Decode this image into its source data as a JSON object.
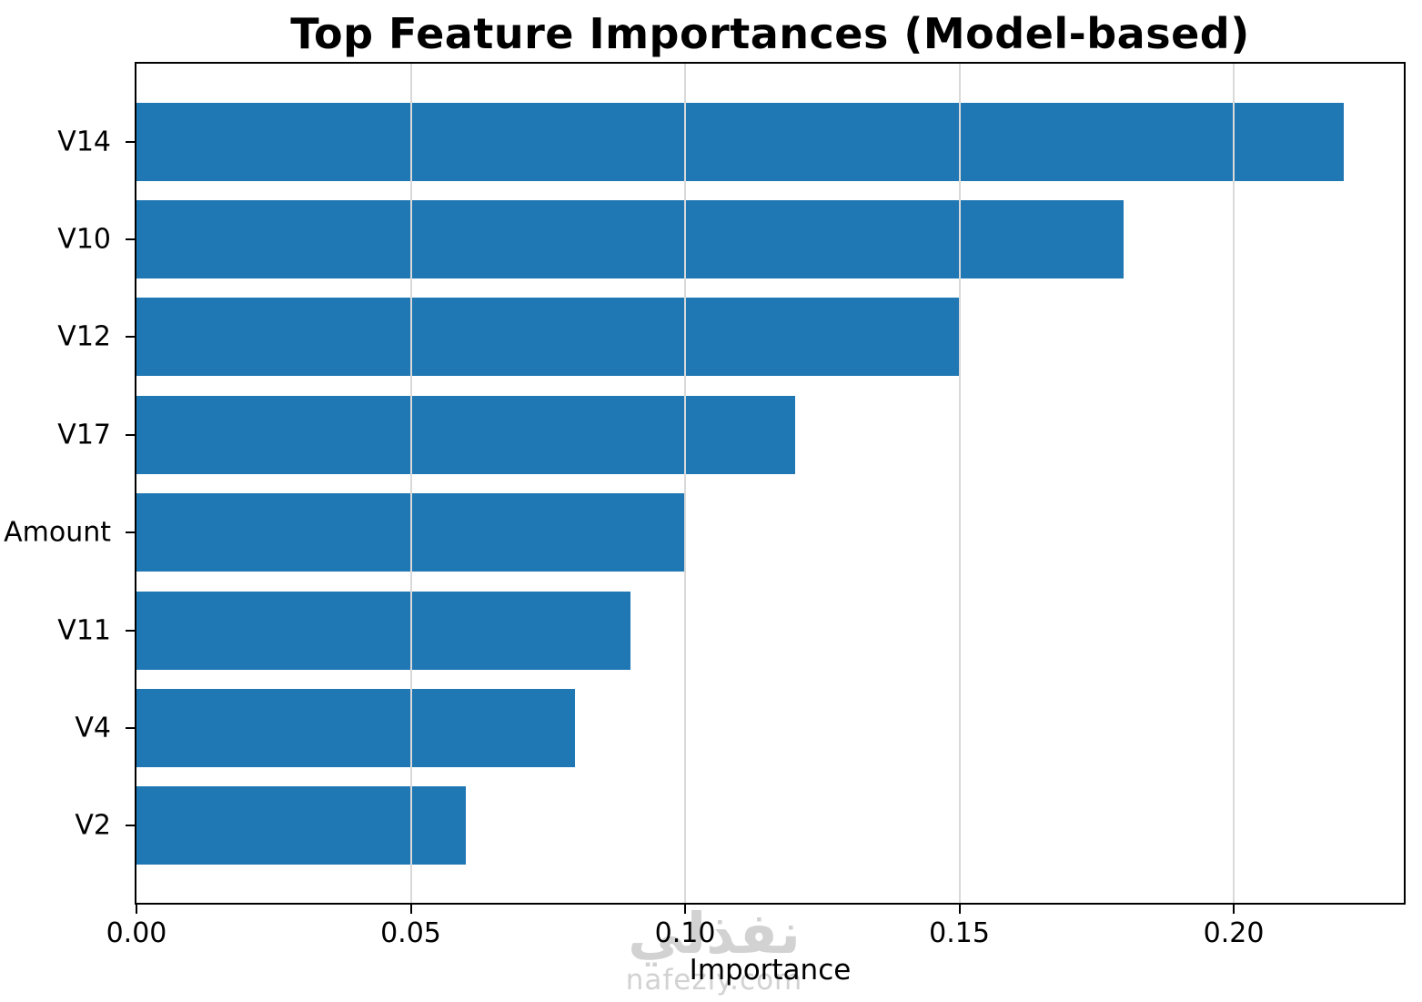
{
  "chart_data": {
    "type": "bar",
    "orientation": "horizontal",
    "title": "Top Feature Importances (Model-based)",
    "xlabel": "Importance",
    "ylabel": "",
    "categories": [
      "V14",
      "V10",
      "V12",
      "V17",
      "Amount",
      "V11",
      "V4",
      "V2"
    ],
    "values": [
      0.22,
      0.18,
      0.15,
      0.12,
      0.1,
      0.09,
      0.08,
      0.06
    ],
    "x_ticks": [
      0.0,
      0.05,
      0.1,
      0.15,
      0.2
    ],
    "x_tick_labels": [
      "0.00",
      "0.05",
      "0.10",
      "0.15",
      "0.20"
    ],
    "xlim": [
      0,
      0.231
    ],
    "grid": true,
    "legend": false,
    "bar_color": "#1f77b4",
    "gridline_color": "#d9d9d9",
    "spine_color": "#000000"
  },
  "watermark": {
    "logo_text": "نفذلي",
    "domain": "nafezly.com"
  }
}
